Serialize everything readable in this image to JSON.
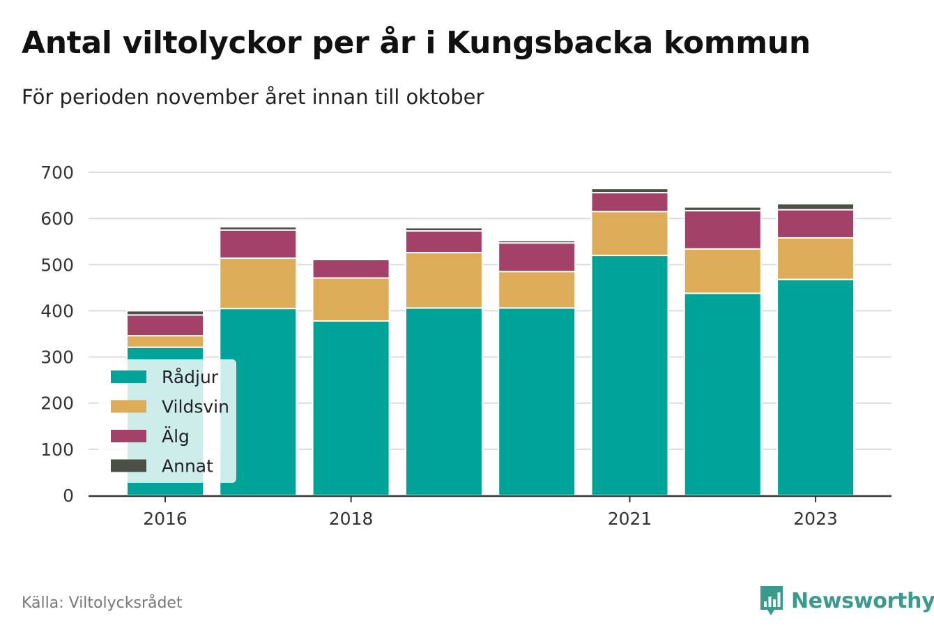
{
  "header": {
    "title": "Antal viltolyckor per år i Kungsbacka kommun",
    "subtitle": "För perioden november året innan till oktober"
  },
  "footer": {
    "source": "Källa: Viltolycksrådet",
    "brand": "Newsworthy",
    "brand_icon": "bar-chart-speech-bubble-icon",
    "brand_color": "#3a9b8c"
  },
  "chart_data": {
    "type": "bar",
    "stacked": true,
    "x": [
      2016,
      2017,
      2018,
      2019,
      2020,
      2021,
      2022,
      2023
    ],
    "x_tick_labels": [
      "2016",
      "2018",
      "2021",
      "2023"
    ],
    "ylim": [
      0,
      700
    ],
    "y_ticks": [
      0,
      100,
      200,
      300,
      400,
      500,
      600,
      700
    ],
    "grid": true,
    "legend_position": "bottom-left",
    "series": [
      {
        "name": "Rådjur",
        "color": "#00a397",
        "values": [
          321,
          405,
          378,
          406,
          406,
          520,
          438,
          468
        ]
      },
      {
        "name": "Vildsvin",
        "color": "#dcac58",
        "values": [
          25,
          109,
          93,
          120,
          79,
          95,
          96,
          90
        ]
      },
      {
        "name": "Älg",
        "color": "#a44168",
        "values": [
          45,
          61,
          40,
          47,
          62,
          41,
          83,
          61
        ]
      },
      {
        "name": "Annat",
        "color": "#4c4f43",
        "values": [
          9,
          7,
          0,
          7,
          5,
          9,
          8,
          13
        ]
      }
    ]
  }
}
